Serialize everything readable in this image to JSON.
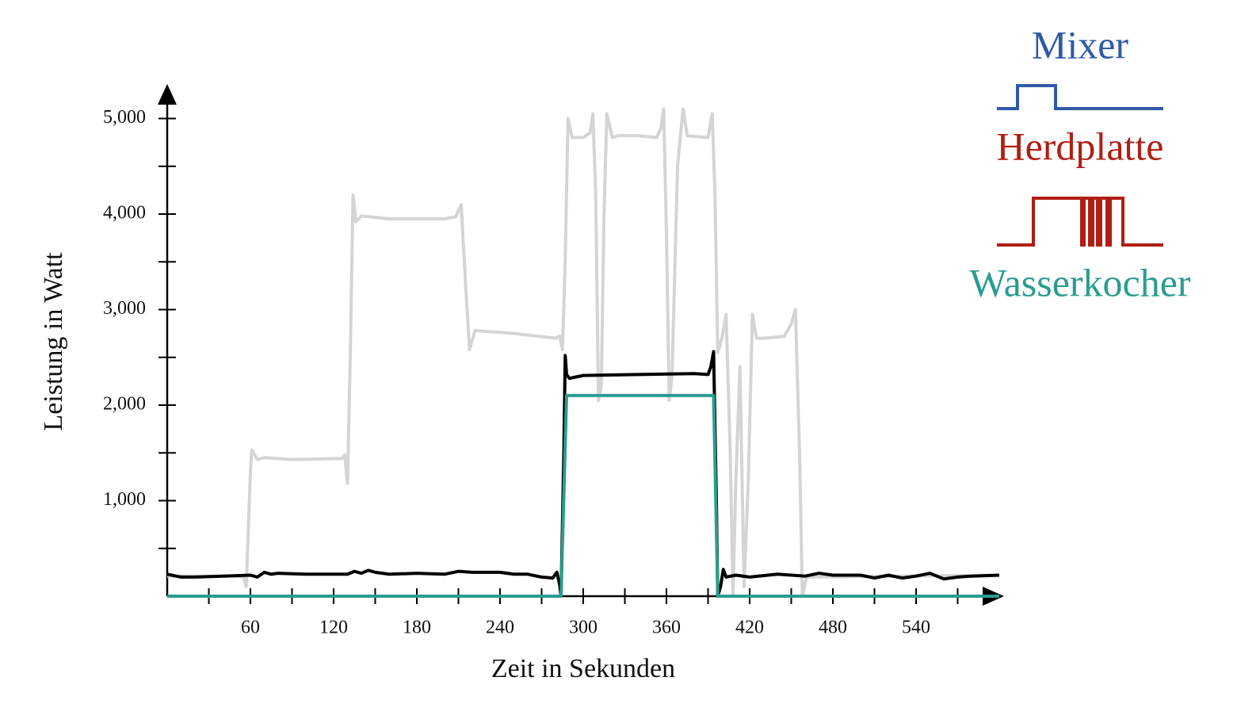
{
  "chart_data": {
    "type": "line",
    "x_label": "Zeit in Sekunden",
    "y_label": "Leistung in Watt",
    "xlim": [
      0,
      600
    ],
    "ylim": [
      0,
      5300
    ],
    "xticks": [
      60,
      120,
      180,
      240,
      300,
      360,
      420,
      480,
      540
    ],
    "xminorticks": [
      30,
      90,
      150,
      210,
      270,
      330,
      390,
      450,
      510,
      570
    ],
    "yticks": [
      {
        "value": 1000,
        "label": "1,000"
      },
      {
        "value": 2000,
        "label": "2,000"
      },
      {
        "value": 3000,
        "label": "3,000"
      },
      {
        "value": 4000,
        "label": "4,000"
      },
      {
        "value": 5000,
        "label": "5,000"
      }
    ],
    "yminorticks": [
      500,
      1500,
      2500,
      3500,
      4500
    ],
    "series": [
      {
        "color": "#d4d4d4",
        "x": [
          0,
          50,
          55,
          57,
          60,
          61,
          65,
          70,
          90,
          120,
          126,
          128,
          130,
          132,
          134,
          136,
          140,
          160,
          200,
          208,
          212,
          215,
          218,
          222,
          250,
          280,
          283,
          285,
          287,
          289,
          292,
          300,
          305,
          307,
          309,
          311,
          313,
          315,
          317,
          321,
          325,
          328,
          340,
          353,
          356,
          358,
          360,
          362,
          364,
          368,
          372,
          375,
          390,
          393,
          395,
          397,
          400,
          403,
          406,
          408,
          410,
          413,
          416,
          419,
          422,
          425,
          430,
          445,
          450,
          453,
          456,
          458,
          461,
          600
        ],
        "values": [
          210,
          210,
          200,
          100,
          1300,
          1530,
          1430,
          1450,
          1430,
          1440,
          1440,
          1480,
          1180,
          2500,
          4200,
          3920,
          3980,
          3950,
          3950,
          3970,
          4100,
          3300,
          2580,
          2780,
          2750,
          2700,
          2720,
          2580,
          3500,
          5000,
          4800,
          4800,
          4850,
          5050,
          4200,
          2050,
          2200,
          4000,
          5050,
          4800,
          4820,
          4820,
          4820,
          4800,
          4900,
          5100,
          3800,
          2050,
          2300,
          4500,
          5100,
          4820,
          4800,
          5050,
          4200,
          2550,
          2700,
          2950,
          1500,
          0,
          1200,
          2400,
          100,
          1200,
          2950,
          2700,
          2700,
          2720,
          2850,
          3000,
          1500,
          0,
          200,
          220
        ]
      },
      {
        "color": "#000000",
        "x": [
          0,
          10,
          20,
          40,
          60,
          65,
          70,
          75,
          80,
          100,
          130,
          135,
          140,
          145,
          150,
          160,
          180,
          200,
          210,
          220,
          240,
          250,
          260,
          270,
          278,
          281,
          283,
          284,
          286,
          287,
          288,
          290,
          300,
          340,
          380,
          390,
          392,
          394,
          396,
          397,
          399,
          401,
          403,
          410,
          420,
          440,
          460,
          470,
          480,
          500,
          510,
          520,
          530,
          540,
          550,
          560,
          570,
          580,
          600
        ],
        "values": [
          230,
          200,
          200,
          210,
          220,
          200,
          250,
          230,
          240,
          230,
          230,
          260,
          240,
          270,
          250,
          230,
          240,
          230,
          260,
          250,
          250,
          230,
          230,
          200,
          190,
          250,
          120,
          0,
          1500,
          2520,
          2320,
          2280,
          2310,
          2320,
          2330,
          2320,
          2400,
          2560,
          1000,
          0,
          100,
          280,
          200,
          220,
          200,
          230,
          210,
          240,
          220,
          220,
          190,
          220,
          190,
          210,
          240,
          180,
          200,
          210,
          220
        ]
      },
      {
        "color": "#2a9d8f",
        "x": [
          0,
          284,
          288,
          394,
          397,
          600
        ],
        "values": [
          0,
          0,
          2100,
          2100,
          0,
          0
        ]
      }
    ],
    "legend": [
      {
        "label": "Mixer",
        "color": "#2f5aa8"
      },
      {
        "label": "Herdplatte",
        "color": "#b01e14"
      },
      {
        "label": "Wasserkocher",
        "color": "#2a9d8f"
      }
    ]
  }
}
